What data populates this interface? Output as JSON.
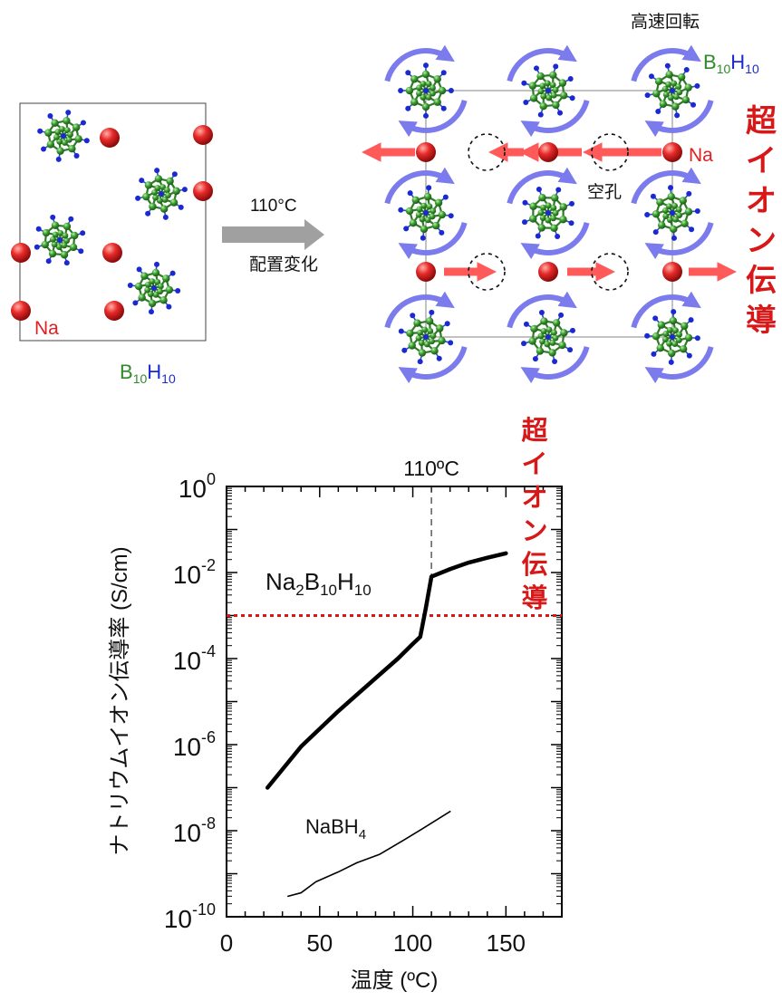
{
  "left_structure": {
    "na_label": "Na",
    "b_label": {
      "main": "B",
      "sub1": "10",
      "h": "H",
      "sub2": "10"
    }
  },
  "transition": {
    "temperature": "110°C",
    "caption": "配置変化"
  },
  "right_structure": {
    "rotation_label": "高速回転",
    "b_label": {
      "main": "B",
      "sub1": "10",
      "h": "H",
      "sub2": "10"
    },
    "na_label": "Na",
    "vacancy_label": "空孔",
    "superionic_vertical": [
      "超",
      "イ",
      "オ",
      "ン",
      "伝",
      "導"
    ]
  },
  "colors": {
    "cluster_green": "#2f8a2a",
    "hydrogen_blue": "#1a2ad0",
    "sodium_red": "#e02020",
    "rotation_arrow": "#7b7bee",
    "migration_arrow": "#ff5a5a",
    "threshold_line": "#d81818"
  },
  "chart_data": {
    "type": "line",
    "xlabel": "温度 (ºC)",
    "ylabel": "ナトリウムイオン伝導率 (S/cm)",
    "xlim": [
      0,
      180
    ],
    "ylim_log10": [
      -10,
      0
    ],
    "y_scale": "log",
    "x_ticks": [
      0,
      50,
      100,
      150
    ],
    "y_ticks": [
      {
        "exp": 0,
        "base": "10",
        "power": "0"
      },
      {
        "exp": -2,
        "base": "10",
        "power": "-2"
      },
      {
        "exp": -4,
        "base": "10",
        "power": "-4"
      },
      {
        "exp": -6,
        "base": "10",
        "power": "-6"
      },
      {
        "exp": -8,
        "base": "10",
        "power": "-8"
      },
      {
        "exp": -10,
        "base": "10",
        "power": "-10"
      }
    ],
    "transition_marker": {
      "x": 110,
      "label": "110ºC"
    },
    "threshold": {
      "y": 0.001,
      "label_vertical": [
        "超",
        "イ",
        "オ",
        "ン",
        "伝",
        "導"
      ]
    },
    "series": [
      {
        "name": "Na2B10H10",
        "label": {
          "a": "Na",
          "s1": "2",
          "b": "B",
          "s2": "10",
          "c": "H",
          "s3": "10"
        },
        "stroke": "thick",
        "points": [
          [
            22,
            1e-07
          ],
          [
            40,
            9e-07
          ],
          [
            60,
            6e-06
          ],
          [
            80,
            3.5e-05
          ],
          [
            92,
            0.0001
          ],
          [
            100,
            0.00022
          ],
          [
            104,
            0.00032
          ],
          [
            107,
            0.0015
          ],
          [
            110,
            0.008
          ],
          [
            120,
            0.012
          ],
          [
            130,
            0.017
          ],
          [
            140,
            0.022
          ],
          [
            150,
            0.028
          ]
        ]
      },
      {
        "name": "NaBH4",
        "label": {
          "a": "NaBH",
          "s1": "4"
        },
        "stroke": "thin",
        "points": [
          [
            33,
            3e-10
          ],
          [
            40,
            3.6e-10
          ],
          [
            48,
            6.5e-10
          ],
          [
            60,
            1.1e-09
          ],
          [
            70,
            1.8e-09
          ],
          [
            82,
            2.8e-09
          ],
          [
            95,
            6e-09
          ],
          [
            105,
            1.1e-08
          ],
          [
            120,
            2.8e-08
          ]
        ]
      }
    ]
  }
}
